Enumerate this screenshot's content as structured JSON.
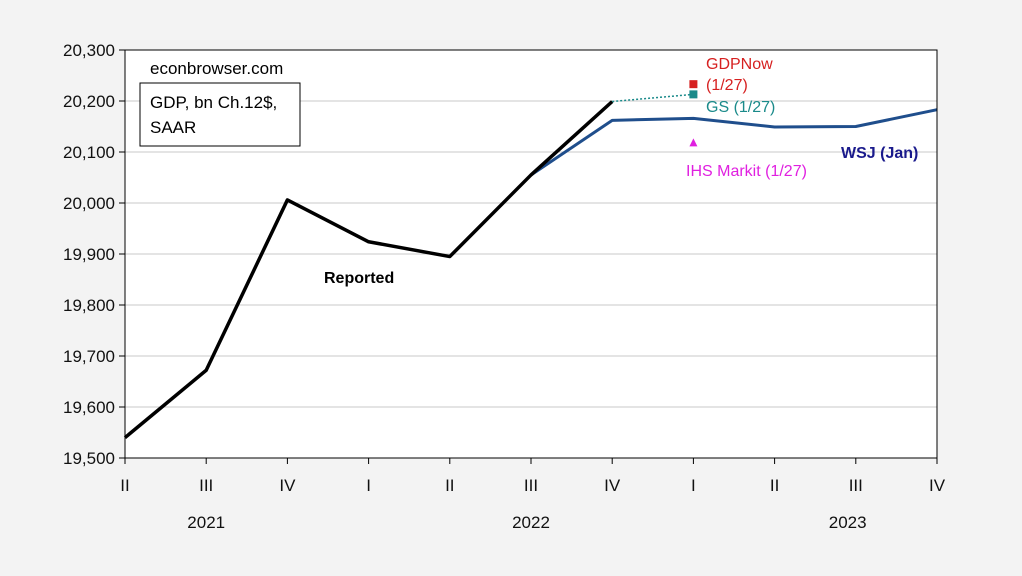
{
  "chart_data": {
    "type": "line",
    "source_label": "econbrowser.com",
    "legend_box": [
      "GDP, bn Ch.12$,",
      "SAAR"
    ],
    "categories": [
      "II",
      "III",
      "IV",
      "I",
      "II",
      "III",
      "IV",
      "I",
      "II",
      "III",
      "IV"
    ],
    "years": [
      {
        "label": "2021",
        "center_index": 1
      },
      {
        "label": "2022",
        "center_index": 5
      },
      {
        "label": "2023",
        "center_index": 8.9
      }
    ],
    "ylim": [
      19500,
      20300
    ],
    "yticks": [
      19500,
      19600,
      19700,
      19800,
      19900,
      20000,
      20100,
      20200,
      20300
    ],
    "ytick_labels": [
      "19,500",
      "19,600",
      "19,700",
      "19,800",
      "19,900",
      "20,000",
      "20,100",
      "20,200",
      "20,300"
    ],
    "grid": true,
    "series": [
      {
        "name": "Reported",
        "color": "#000000",
        "values": [
          19540,
          19672,
          20006,
          19924,
          19895,
          20055,
          20199,
          null,
          null,
          null,
          null
        ]
      },
      {
        "name": "WSJ (Jan)",
        "color": "#1f4e8c",
        "values": [
          null,
          null,
          null,
          null,
          null,
          20055,
          20162,
          20166,
          20149,
          20150,
          20183
        ]
      }
    ],
    "points": [
      {
        "name": "GDPNow",
        "label_lines": [
          "GDPNow",
          "(1/27)"
        ],
        "index": 7,
        "value": 20233,
        "color": "#d62020",
        "marker": "square"
      },
      {
        "name": "GS",
        "label_lines": [
          "GS (1/27)"
        ],
        "index": 7,
        "value": 20213,
        "color": "#1a8a8a",
        "marker": "square"
      },
      {
        "name": "IHS Markit",
        "label_lines": [
          "IHS Markit (1/27)"
        ],
        "index": 7,
        "value": 20117,
        "color": "#e020e0",
        "marker": "triangle"
      }
    ],
    "dotted_link": {
      "from_index": 6,
      "from_value": 20199,
      "to_index": 7,
      "to_value": 20213,
      "color": "#1a8a8a"
    }
  }
}
